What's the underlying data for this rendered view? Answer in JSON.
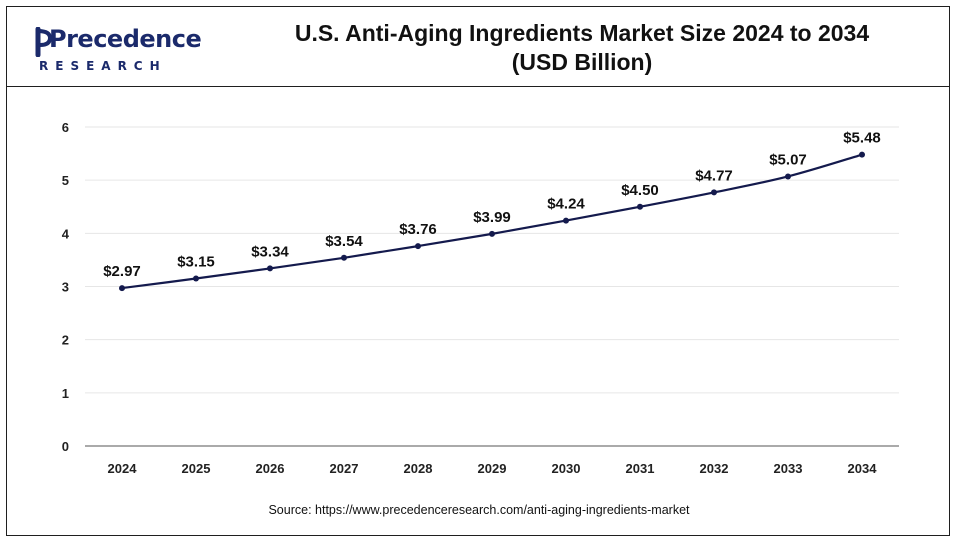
{
  "brand": {
    "name": "Precedence",
    "sub": "RESEARCH",
    "color": "#1b2a6b"
  },
  "header": {
    "title_line1": "U.S. Anti-Aging Ingredients Market Size 2024 to 2034",
    "title_line2": "(USD Billion)"
  },
  "source": "Source: https://www.precedenceresearch.com/anti-aging-ingredients-market",
  "colors": {
    "line": "#141a4d",
    "grid": "#e6e6e6",
    "axis": "#555555"
  },
  "chart_data": {
    "type": "line",
    "title": "U.S. Anti-Aging Ingredients Market Size 2024 to 2034 (USD Billion)",
    "categories": [
      "2024",
      "2025",
      "2026",
      "2027",
      "2028",
      "2029",
      "2030",
      "2031",
      "2032",
      "2033",
      "2034"
    ],
    "series": [
      {
        "values": [
          2.97,
          3.15,
          3.34,
          3.54,
          3.76,
          3.99,
          4.24,
          4.5,
          4.77,
          5.07,
          5.48
        ],
        "labels": [
          "$2.97",
          "$3.15",
          "$3.34",
          "$3.54",
          "$3.76",
          "$3.99",
          "$4.24",
          "$4.50",
          "$4.77",
          "$5.07",
          "$5.48"
        ]
      }
    ],
    "ylim": [
      0,
      6
    ],
    "yticks": [
      0,
      1,
      2,
      3,
      4,
      5,
      6
    ],
    "grid": true,
    "legend": "none"
  }
}
